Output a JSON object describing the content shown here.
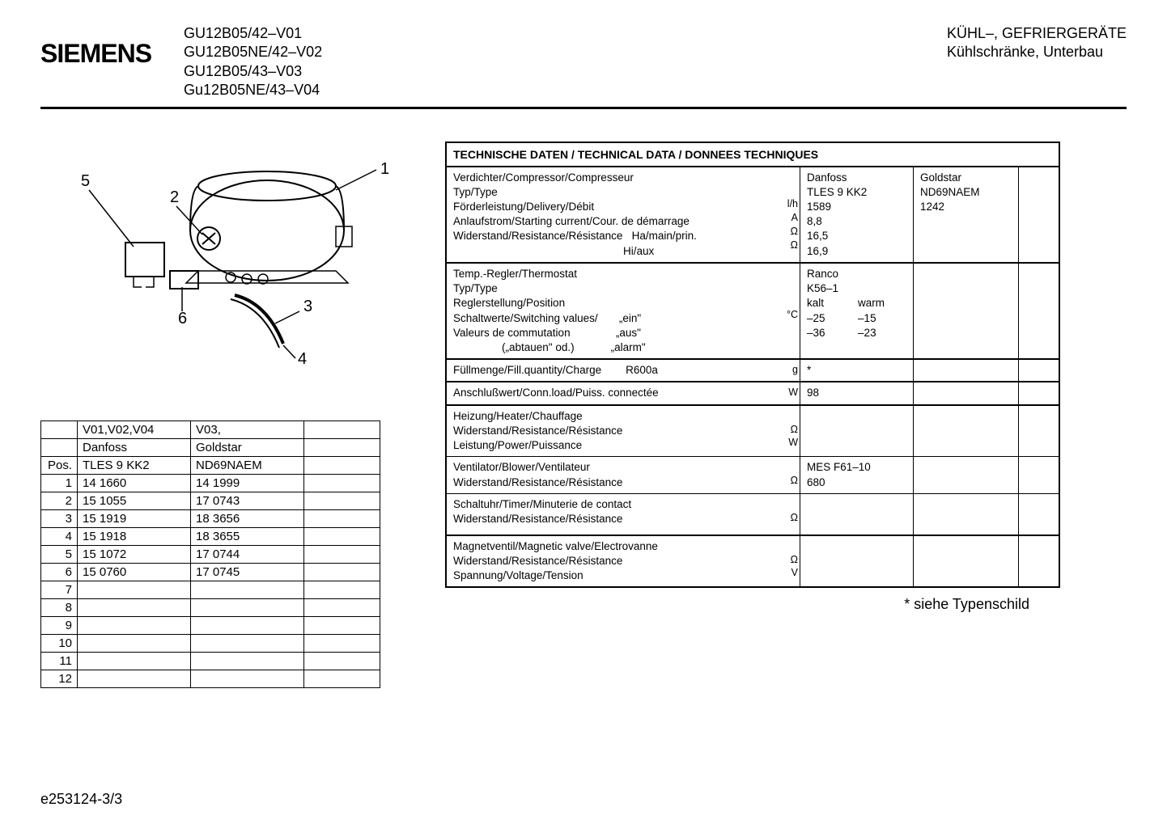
{
  "header": {
    "brand": "SIEMENS",
    "models": [
      "GU12B05/42–V01",
      "GU12B05NE/42–V02",
      "GU12B05/43–V03",
      "Gu12B05NE/43–V04"
    ],
    "category_line1": "KÜHL–, GEFRIERGERÄTE",
    "category_line2": "Kühlschränke, Unterbau"
  },
  "diagram": {
    "callouts": [
      "1",
      "2",
      "3",
      "4",
      "5",
      "6"
    ]
  },
  "parts_table": {
    "header_row": [
      "",
      "V01,V02,V04",
      "V03,",
      ""
    ],
    "sub_header1": [
      "",
      "Danfoss",
      "Goldstar",
      ""
    ],
    "sub_header2": [
      "Pos.",
      "TLES 9 KK2",
      "ND69NAEM",
      ""
    ],
    "rows": [
      [
        "1",
        "14 1660",
        "14 1999",
        ""
      ],
      [
        "2",
        "15 1055",
        "17 0743",
        ""
      ],
      [
        "3",
        "15 1919",
        "18 3656",
        ""
      ],
      [
        "4",
        "15 1918",
        "18 3655",
        ""
      ],
      [
        "5",
        "15 1072",
        "17 0744",
        ""
      ],
      [
        "6",
        "15 0760",
        "17 0745",
        ""
      ],
      [
        "7",
        "",
        "",
        ""
      ],
      [
        "8",
        "",
        "",
        ""
      ],
      [
        "9",
        "",
        "",
        ""
      ],
      [
        "10",
        "",
        "",
        ""
      ],
      [
        "11",
        "",
        "",
        ""
      ],
      [
        "12",
        "",
        "",
        ""
      ]
    ]
  },
  "tech": {
    "title": "TECHNISCHE DATEN / TECHNICAL DATA / DONNEES TECHNIQUES",
    "compressor": {
      "labels": "Verdichter/Compressor/Compresseur\nTyp/Type\nFörderleistung/Delivery/Débit\nAnlaufstrom/Starting current/Cour. de démarrage\nWiderstand/Resistance/Résistance   Ha/main/prin.\n                                                        Hi/aux",
      "units": "\n\nl/h\nA\nΩ\nΩ",
      "col1": "Danfoss\nTLES 9 KK2\n1589\n8,8\n16,5\n16,9",
      "col2": "Goldstar\nND69NAEM\n1242"
    },
    "thermostat": {
      "labels": "Temp.-Regler/Thermostat\nTyp/Type\nReglerstellung/Position\nSchaltwerte/Switching values/       „ein\"\nValeurs de commutation               „aus\"\n                („abtauen\" od.)            „alarm\"",
      "units": "\n\n\n°C",
      "col1_left": "Ranco\nK56–1\nkalt\n–25\n–36",
      "col1_right": "\n\nwarm\n–15\n–23"
    },
    "fill": {
      "labels": "Füllmenge/Fill.quantity/Charge        R600a",
      "units": "g",
      "col1": "*"
    },
    "conn": {
      "labels": "Anschlußwert/Conn.load/Puiss. connectée",
      "units": "W",
      "col1": "98"
    },
    "heater": {
      "labels": "Heizung/Heater/Chauffage\nWiderstand/Resistance/Résistance\nLeistung/Power/Puissance",
      "units": "\nΩ\nW",
      "col1": ""
    },
    "blower": {
      "labels": "Ventilator/Blower/Ventilateur\nWiderstand/Resistance/Résistance",
      "units": "\nΩ",
      "col1": "MES F61–10\n680"
    },
    "timer": {
      "labels": "Schaltuhr/Timer/Minuterie de contact\nWiderstand/Resistance/Résistance",
      "units": "\nΩ",
      "col1": ""
    },
    "valve": {
      "labels": "Magnetventil/Magnetic valve/Electrovanne\nWiderstand/Resistance/Résistance\nSpannung/Voltage/Tension",
      "units": "\nΩ\nV",
      "col1": ""
    }
  },
  "footnote": "* siehe Typenschild",
  "doc_id": "e253124-3/3"
}
